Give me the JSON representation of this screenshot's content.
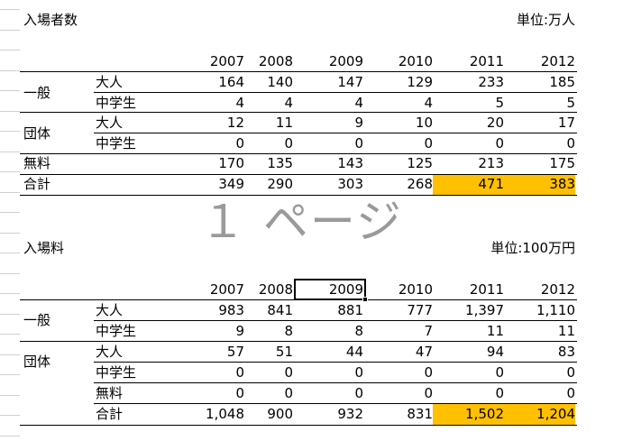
{
  "years": [
    "2007",
    "2008",
    "2009",
    "2010",
    "2011",
    "2012"
  ],
  "page_label": "１ ページ",
  "table1": {
    "title": "入場者数",
    "unit": "単位:万人",
    "groups": {
      "general": "一般",
      "group": "団体",
      "free": "無料",
      "total": "合計"
    },
    "sub": {
      "adult": "大人",
      "student": "中学生"
    },
    "rows": {
      "general_adult": [
        "164",
        "140",
        "147",
        "129",
        "233",
        "185"
      ],
      "general_student": [
        "4",
        "4",
        "4",
        "4",
        "5",
        "5"
      ],
      "group_adult": [
        "12",
        "11",
        "9",
        "10",
        "20",
        "17"
      ],
      "group_student": [
        "0",
        "0",
        "0",
        "0",
        "0",
        "0"
      ],
      "free": [
        "170",
        "135",
        "143",
        "125",
        "213",
        "175"
      ],
      "total": [
        "349",
        "290",
        "303",
        "268",
        "471",
        "383"
      ]
    }
  },
  "table2": {
    "title": "入場料",
    "unit": "単位:100万円",
    "groups": {
      "general": "一般",
      "group": "団体"
    },
    "sub": {
      "adult": "大人",
      "student": "中学生",
      "free": "無料",
      "total": "合計"
    },
    "rows": {
      "general_adult": [
        "983",
        "841",
        "881",
        "777",
        "1,397",
        "1,110"
      ],
      "general_student": [
        "9",
        "8",
        "8",
        "7",
        "11",
        "11"
      ],
      "group_adult": [
        "57",
        "51",
        "44",
        "47",
        "94",
        "83"
      ],
      "group_student": [
        "0",
        "0",
        "0",
        "0",
        "0",
        "0"
      ],
      "free": [
        "0",
        "0",
        "0",
        "0",
        "0",
        "0"
      ],
      "total": [
        "1,048",
        "900",
        "932",
        "831",
        "1,502",
        "1,204"
      ]
    }
  },
  "highlight_color": "#ffc000"
}
